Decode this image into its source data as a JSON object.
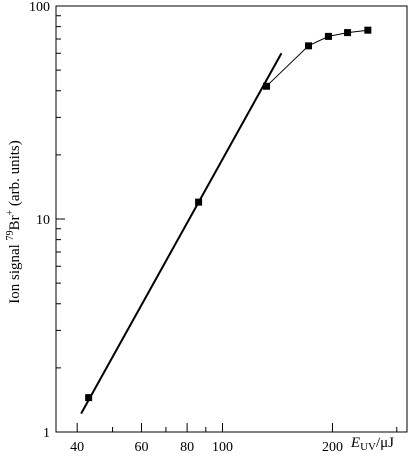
{
  "chart_data": {
    "type": "scatter",
    "x_scale": "log",
    "y_scale": "log",
    "xlim": [
      35,
      320
    ],
    "ylim": [
      1,
      100
    ],
    "x_ticks": [
      {
        "value": 40,
        "label": "40"
      },
      {
        "value": 60,
        "label": "60"
      },
      {
        "value": 80,
        "label": "80"
      },
      {
        "value": 100,
        "label": "100"
      },
      {
        "value": 200,
        "label": "200"
      }
    ],
    "y_ticks": [
      {
        "value": 1,
        "label": "1"
      },
      {
        "value": 10,
        "label": "10"
      },
      {
        "value": 100,
        "label": "100"
      }
    ],
    "xlabel": {
      "symbol": "E",
      "subscript": "UV",
      "unit": "/μJ"
    },
    "ylabel": {
      "prefix": "Ion signal ",
      "superscript": "79",
      "species": "Br",
      "charge": "+",
      "suffix": " (arb. units)"
    },
    "grid": false,
    "series": [
      {
        "points": [
          {
            "x": 43,
            "y": 1.45
          },
          {
            "x": 86,
            "y": 12
          },
          {
            "x": 132,
            "y": 42
          },
          {
            "x": 172,
            "y": 65
          },
          {
            "x": 195,
            "y": 72
          },
          {
            "x": 220,
            "y": 75
          },
          {
            "x": 250,
            "y": 77
          }
        ]
      }
    ],
    "fit_line": {
      "x": [
        41,
        145
      ],
      "y": [
        1.22,
        60
      ]
    }
  }
}
